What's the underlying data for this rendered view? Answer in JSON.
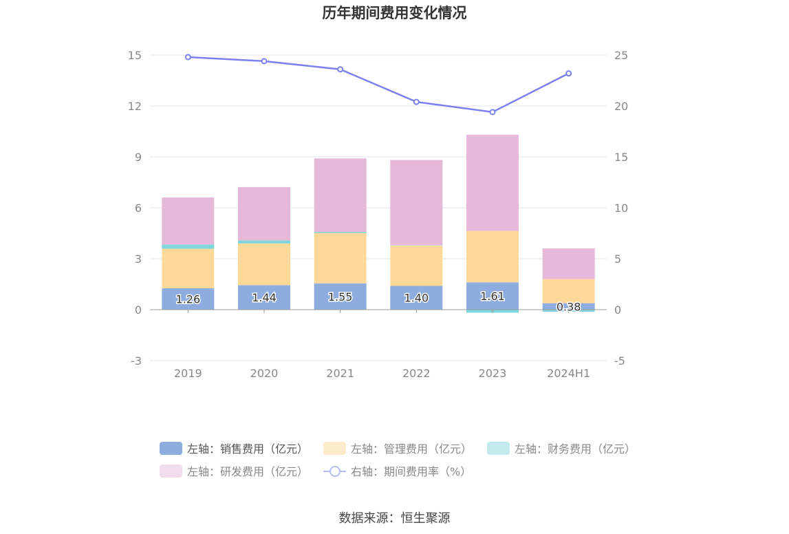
{
  "chart_data": {
    "type": "bar",
    "title": "历年期间费用变化情况",
    "categories": [
      "2019",
      "2020",
      "2021",
      "2022",
      "2023",
      "2024H1"
    ],
    "y_left": {
      "ticks": [
        -3,
        0,
        3,
        6,
        9,
        12,
        15
      ],
      "range": [
        -3,
        15
      ]
    },
    "y_right": {
      "ticks": [
        -5,
        0,
        5,
        10,
        15,
        20,
        25
      ],
      "range": [
        -5,
        25
      ]
    },
    "stacked": true,
    "series": [
      {
        "name": "左轴：销售费用（亿元）",
        "axis": "left",
        "type": "bar",
        "color": "#8eadde",
        "values": [
          1.26,
          1.44,
          1.55,
          1.4,
          1.61,
          0.38
        ],
        "labels": [
          "1.26",
          "1.44",
          "1.55",
          "1.40",
          "1.61",
          "0.38"
        ]
      },
      {
        "name": "左轴：管理费用（亿元）",
        "axis": "left",
        "type": "bar",
        "color": "#fdd899",
        "values": [
          2.33,
          2.46,
          2.97,
          2.38,
          3.03,
          1.42
        ]
      },
      {
        "name": "左轴：财务费用（亿元）",
        "axis": "left",
        "type": "bar",
        "color": "#7fd6dc",
        "values": [
          0.25,
          0.18,
          0.06,
          0.02,
          -0.18,
          -0.12
        ]
      },
      {
        "name": "左轴：研发费用（亿元）",
        "axis": "left",
        "type": "bar",
        "color": "#e6b8da",
        "values": [
          2.77,
          3.14,
          4.33,
          5.02,
          5.67,
          1.81
        ]
      },
      {
        "name": "右轴：期间费用率（%）",
        "axis": "right",
        "type": "line",
        "color": "#7b80ee",
        "values": [
          24.8,
          24.4,
          23.6,
          20.4,
          19.4,
          23.2
        ]
      }
    ],
    "grid": true,
    "legend_position": "bottom"
  },
  "source": "数据来源：恒生聚源"
}
